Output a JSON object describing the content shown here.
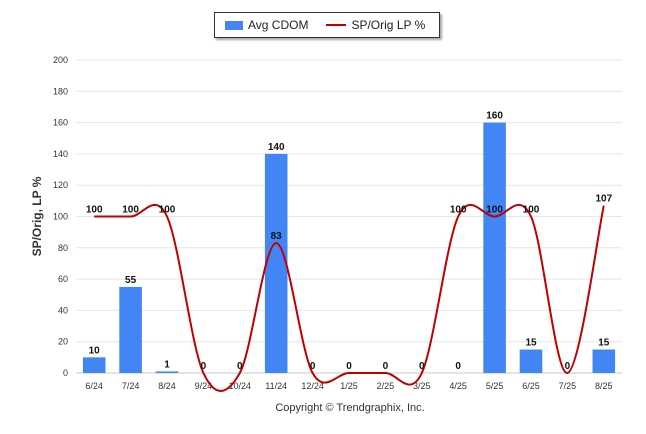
{
  "chart_data": {
    "type": "bar",
    "categories": [
      "6/24",
      "7/24",
      "8/24",
      "9/24",
      "10/24",
      "11/24",
      "12/24",
      "1/25",
      "2/25",
      "3/25",
      "4/25",
      "5/25",
      "6/25",
      "7/25",
      "8/25"
    ],
    "series": [
      {
        "name": "Avg CDOM",
        "type": "bar",
        "color": "#4285f4",
        "values": [
          10,
          55,
          1,
          0,
          0,
          140,
          0,
          0,
          0,
          0,
          0,
          160,
          15,
          0,
          15
        ]
      },
      {
        "name": "SP/Orig LP %",
        "type": "line",
        "color": "#c00000",
        "values": [
          100,
          100,
          100,
          0,
          0,
          83,
          0,
          0,
          0,
          0,
          100,
          100,
          100,
          0,
          107
        ]
      }
    ],
    "ylabel": "SP/Orig, LP %",
    "ylim": [
      0,
      200
    ],
    "yticks": [
      0,
      20,
      40,
      60,
      80,
      100,
      120,
      140,
      160,
      180,
      200
    ],
    "grid": true,
    "legend": "top-center"
  },
  "legend": {
    "bar_label": "Avg CDOM",
    "line_label": "SP/Orig LP %"
  },
  "footer": "Copyright © Trendgraphix, Inc."
}
